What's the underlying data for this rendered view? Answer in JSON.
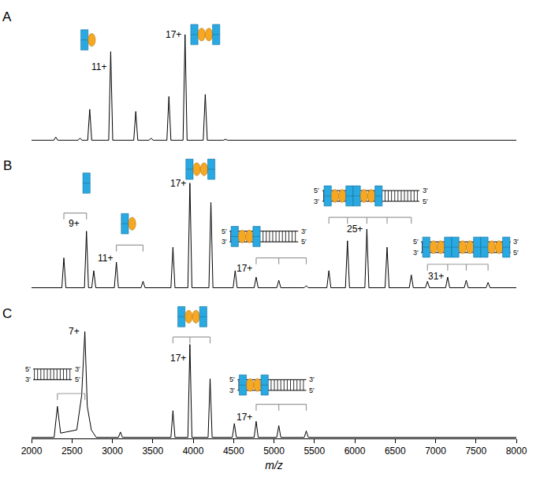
{
  "chart_data": {
    "type": "line",
    "xlabel": "m/z",
    "xlim": [
      2000,
      8000
    ],
    "xticks": [
      2000,
      2500,
      3000,
      3500,
      4000,
      4500,
      5000,
      5500,
      6000,
      6500,
      7000,
      7500,
      8000
    ],
    "tick_labels": "x",
    "grid": false,
    "color": "#000000",
    "strand_labels": {
      "left": [
        "5′",
        "3′"
      ],
      "right": [
        "3′",
        "5′"
      ]
    },
    "panels": [
      {
        "label": "A",
        "ylim": [
          0,
          125
        ],
        "x": [
          2000,
          2275,
          2300,
          2325,
          2575,
          2600,
          2625,
          2695,
          2720,
          2745,
          2955,
          2980,
          3005,
          3265,
          3290,
          3315,
          3455,
          3480,
          3505,
          3675,
          3700,
          3725,
          3875,
          3900,
          3925,
          4125,
          4150,
          4175,
          4375,
          4400,
          4425,
          8000
        ],
        "values": [
          1,
          1,
          4,
          1,
          1,
          3,
          1,
          1,
          30,
          1,
          1,
          84,
          1,
          1,
          28,
          1,
          1,
          3,
          1,
          1,
          42,
          1,
          1,
          100,
          1,
          1,
          44,
          1,
          1,
          2,
          1,
          1
        ],
        "annotations": [
          {
            "text": "11+",
            "x": 2950,
            "y": 70
          },
          {
            "text": "17+",
            "x": 3870,
            "y": 100
          }
        ],
        "brackets": []
      },
      {
        "label": "B",
        "ylim": [
          0,
          125
        ],
        "x": [
          2000,
          2375,
          2400,
          2425,
          2655,
          2680,
          2705,
          2745,
          2770,
          2795,
          3025,
          3050,
          3075,
          3355,
          3380,
          3405,
          3725,
          3750,
          3775,
          3935,
          3960,
          3985,
          4195,
          4220,
          4245,
          4495,
          4520,
          4545,
          4755,
          4780,
          4805,
          5035,
          5060,
          5085,
          5375,
          5400,
          5425,
          5655,
          5680,
          5705,
          5885,
          5910,
          5935,
          6125,
          6150,
          6175,
          6375,
          6400,
          6425,
          6675,
          6700,
          6725,
          6875,
          6900,
          6925,
          7125,
          7150,
          7175,
          7355,
          7380,
          7405,
          7625,
          7650,
          7675,
          8000
        ],
        "values": [
          2,
          2,
          30,
          2,
          2,
          55,
          2,
          2,
          18,
          2,
          2,
          26,
          2,
          2,
          8,
          2,
          2,
          40,
          2,
          2,
          100,
          2,
          2,
          82,
          2,
          2,
          18,
          2,
          2,
          12,
          2,
          2,
          9,
          2,
          2,
          4,
          2,
          2,
          18,
          2,
          2,
          46,
          2,
          2,
          57,
          2,
          2,
          40,
          2,
          2,
          14,
          2,
          2,
          8,
          2,
          2,
          12,
          2,
          2,
          9,
          2,
          2,
          7,
          2,
          2
        ],
        "annotations": [
          {
            "text": "9+",
            "x": 2610,
            "y": 62
          },
          {
            "text": "11+",
            "x": 3020,
            "y": 30
          },
          {
            "text": "17+",
            "x": 3930,
            "y": 100
          },
          {
            "text": "17+",
            "x": 4750,
            "y": 20
          },
          {
            "text": "25+",
            "x": 6120,
            "y": 57
          },
          {
            "text": "31+",
            "x": 7120,
            "y": 13
          }
        ],
        "brackets": [
          [
            2400,
            2680
          ],
          [
            3050,
            3380
          ],
          [
            4780,
            5060,
            5400
          ],
          [
            5680,
            5910,
            6150,
            6400,
            6700
          ],
          [
            6900,
            7150,
            7380,
            7650
          ]
        ]
      },
      {
        "label": "C",
        "ylim": [
          0,
          125
        ],
        "x": [
          2000,
          2280,
          2320,
          2360,
          2560,
          2620,
          2660,
          2690,
          2740,
          2800,
          3075,
          3100,
          3125,
          3725,
          3750,
          3775,
          3935,
          3960,
          3985,
          4185,
          4210,
          4235,
          4485,
          4510,
          4535,
          4755,
          4780,
          4805,
          5035,
          5060,
          5085,
          5375,
          5400,
          5425,
          8000
        ],
        "values": [
          1,
          1,
          30,
          5,
          8,
          40,
          100,
          30,
          8,
          1,
          1,
          6,
          1,
          1,
          26,
          1,
          1,
          88,
          1,
          1,
          56,
          1,
          1,
          14,
          1,
          1,
          16,
          1,
          1,
          12,
          1,
          1,
          7,
          1,
          1
        ],
        "annotations": [
          {
            "text": "7+",
            "x": 2610,
            "y": 100
          },
          {
            "text": "17+",
            "x": 3930,
            "y": 75
          },
          {
            "text": "17+",
            "x": 4750,
            "y": 20
          }
        ],
        "brackets": [
          [
            2320,
            2660
          ],
          [
            3750,
            3960,
            4210
          ],
          [
            4780,
            5060,
            5400
          ]
        ]
      }
    ]
  }
}
